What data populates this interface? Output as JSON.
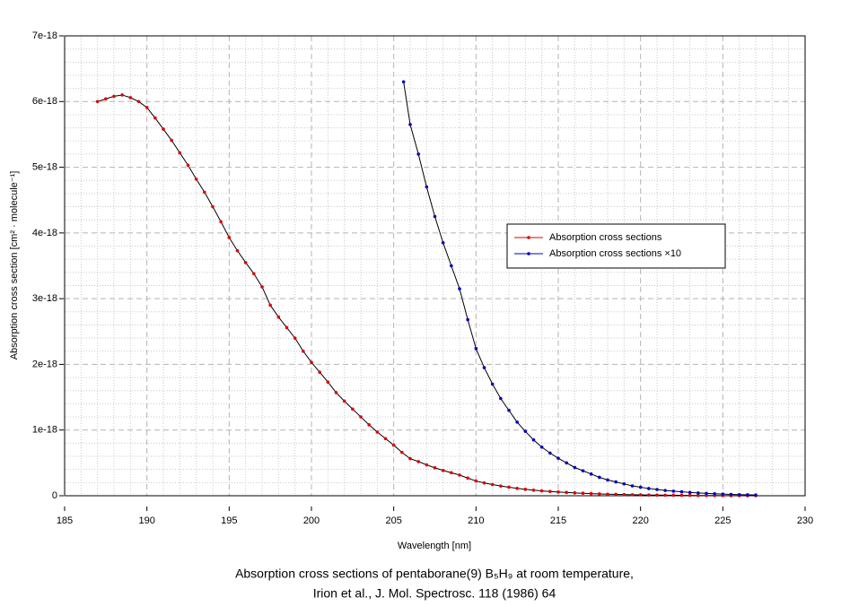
{
  "chart_data": {
    "type": "line",
    "y_label": "Absorption cross section [cm² · molecule⁻¹]",
    "x_label": "Wavelength [nm]",
    "caption": [
      "Absorption cross sections of pentaborane(9) B₅H₉ at room temperature,",
      "Irion et al., J. Mol. Spectrosc. 118 (1986) 64"
    ],
    "xlim": [
      185,
      230
    ],
    "xticks": [
      185,
      190,
      195,
      200,
      205,
      210,
      215,
      220,
      225,
      230
    ],
    "ylim": [
      0,
      7e-18
    ],
    "yticks": [
      0,
      {
        "value": 1e-18,
        "label": "1e-18"
      },
      {
        "value": 2e-18,
        "label": "2e-18"
      },
      {
        "value": 3e-18,
        "label": "3e-18"
      },
      {
        "value": 4e-18,
        "label": "4e-18"
      },
      {
        "value": 5e-18,
        "label": "5e-18"
      },
      {
        "value": 6e-18,
        "label": "6e-18"
      },
      {
        "value": 7e-18,
        "label": "7e-18"
      }
    ],
    "grid": true,
    "minor_grid": true,
    "legend": "right",
    "line_color": "#000000",
    "series": [
      {
        "name": "Absorption cross sections",
        "color": "#e00000",
        "x": [
          187,
          187.5,
          188,
          188.5,
          189,
          189.5,
          190,
          190.5,
          191,
          191.5,
          192,
          192.5,
          193,
          193.5,
          194,
          194.5,
          195,
          195.5,
          196,
          196.5,
          197,
          197.5,
          198,
          198.5,
          199,
          199.5,
          200,
          200.5,
          201,
          201.5,
          202,
          202.5,
          203,
          203.5,
          204,
          204.5,
          205,
          205.5,
          206,
          206.5,
          207,
          207.5,
          208,
          208.5,
          209,
          209.5,
          210,
          210.5,
          211,
          211.5,
          212,
          212.5,
          213,
          213.5,
          214,
          214.5,
          215,
          215.5,
          216,
          216.5,
          217,
          217.5,
          218,
          218.5,
          219,
          219.5,
          220,
          220.5,
          221,
          221.5,
          222,
          222.5,
          223,
          223.5,
          224,
          224.5,
          225,
          225.5,
          226,
          226.5,
          227
        ],
        "values": [
          6e-18,
          6.04e-18,
          6.08e-18,
          6.1e-18,
          6.06e-18,
          6e-18,
          5.91e-18,
          5.75e-18,
          5.58e-18,
          5.41e-18,
          5.22e-18,
          5.03e-18,
          4.82e-18,
          4.62e-18,
          4.4e-18,
          4.17e-18,
          3.93e-18,
          3.73e-18,
          3.55e-18,
          3.38e-18,
          3.18e-18,
          2.9e-18,
          2.72e-18,
          2.56e-18,
          2.4e-18,
          2.2e-18,
          2.03e-18,
          1.88e-18,
          1.73e-18,
          1.57e-18,
          1.44e-18,
          1.32e-18,
          1.2e-18,
          1.08e-18,
          9.7e-19,
          8.7e-19,
          7.7e-19,
          6.6e-19,
          5.65e-19,
          5.2e-19,
          4.7e-19,
          4.25e-19,
          3.85e-19,
          3.5e-19,
          3.15e-19,
          2.68e-19,
          2.24e-19,
          1.95e-19,
          1.7e-19,
          1.48e-19,
          1.3e-19,
          1.12e-19,
          9.8e-20,
          8.5e-20,
          7.4e-20,
          6.5e-20,
          5.7e-20,
          5e-20,
          4.3e-20,
          3.8e-20,
          3.3e-20,
          2.8e-20,
          2.4e-20,
          2.1e-20,
          1.8e-20,
          1.5e-20,
          1.3e-20,
          1.1e-20,
          9.5e-21,
          8e-21,
          7e-21,
          6e-21,
          5e-21,
          4.2e-21,
          3.5e-21,
          3e-21,
          2.5e-21,
          2e-21,
          1.7e-21,
          1.4e-21,
          1.2e-21
        ]
      },
      {
        "name": "Absorption cross sections ×10",
        "color": "#0000c8",
        "x": [
          205.6,
          206,
          206.5,
          207,
          207.5,
          208,
          208.5,
          209,
          209.5,
          210,
          210.5,
          211,
          211.5,
          212,
          212.5,
          213,
          213.5,
          214,
          214.5,
          215,
          215.5,
          216,
          216.5,
          217,
          217.5,
          218,
          218.5,
          219,
          219.5,
          220,
          220.5,
          221,
          221.5,
          222,
          222.5,
          223,
          223.5,
          224,
          224.5,
          225,
          225.5,
          226,
          226.5,
          227
        ],
        "values": [
          6.3e-18,
          5.65e-18,
          5.2e-18,
          4.7e-18,
          4.25e-18,
          3.85e-18,
          3.5e-18,
          3.15e-18,
          2.68e-18,
          2.24e-18,
          1.95e-18,
          1.7e-18,
          1.48e-18,
          1.3e-18,
          1.12e-18,
          9.8e-19,
          8.5e-19,
          7.4e-19,
          6.5e-19,
          5.7e-19,
          5e-19,
          4.3e-19,
          3.8e-19,
          3.3e-19,
          2.8e-19,
          2.4e-19,
          2.1e-19,
          1.8e-19,
          1.5e-19,
          1.3e-19,
          1.1e-19,
          9.5e-20,
          8e-20,
          7e-20,
          6e-20,
          5e-20,
          4.2e-20,
          3.5e-20,
          3e-20,
          2.5e-20,
          2e-20,
          1.7e-20,
          1.4e-20,
          1.2e-20
        ]
      }
    ]
  }
}
